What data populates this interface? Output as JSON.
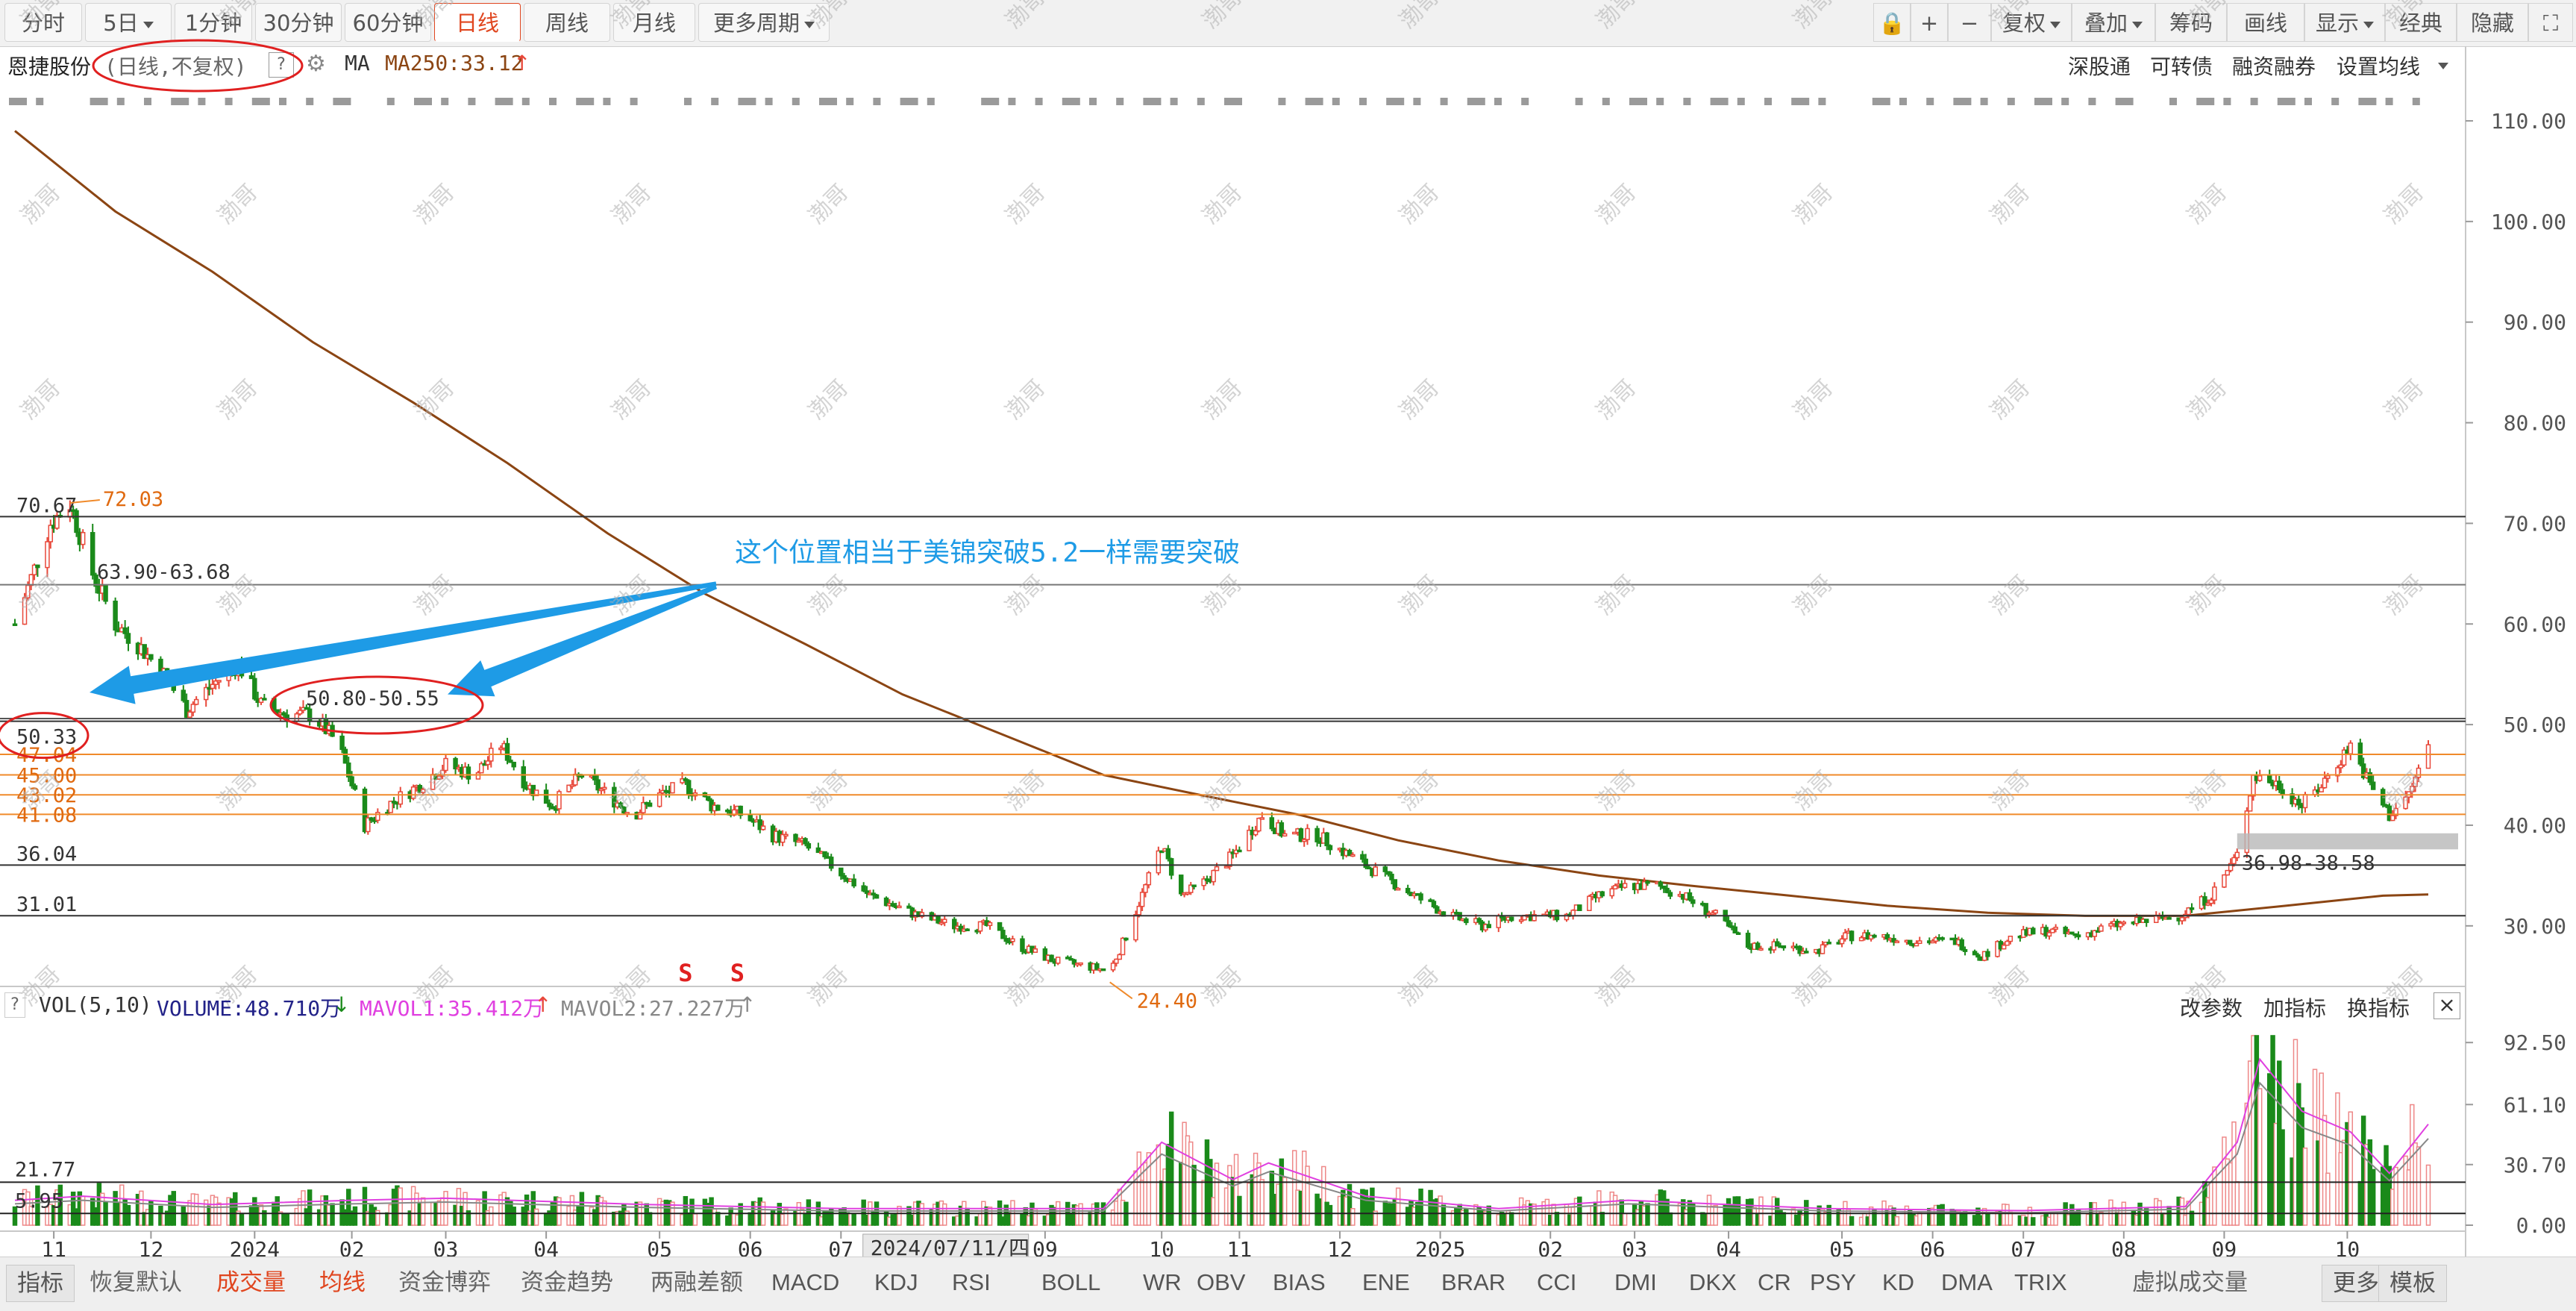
{
  "toolbar": {
    "tabs": [
      {
        "label": "分时",
        "caret": false
      },
      {
        "label": "5日",
        "caret": true
      },
      {
        "label": "1分钟",
        "caret": false
      },
      {
        "label": "30分钟",
        "caret": false
      },
      {
        "label": "60分钟",
        "caret": false
      },
      {
        "label": "日线",
        "caret": false,
        "active": true
      },
      {
        "label": "周线",
        "caret": false
      },
      {
        "label": "月线",
        "caret": false
      },
      {
        "label": "更多周期",
        "caret": true
      }
    ],
    "right": [
      {
        "label": "🔒",
        "caret": false
      },
      {
        "label": "+",
        "caret": false
      },
      {
        "label": "−",
        "caret": false
      },
      {
        "label": "复权",
        "caret": true
      },
      {
        "label": "叠加",
        "caret": true
      },
      {
        "label": "筹码",
        "caret": false
      },
      {
        "label": "画线",
        "caret": false
      },
      {
        "label": "显示",
        "caret": true
      },
      {
        "label": "经典",
        "caret": false
      },
      {
        "label": "隐藏",
        "caret": false
      },
      {
        "label": "⛶",
        "caret": false
      }
    ]
  },
  "info": {
    "stock_name": "恩捷股份",
    "mode": "(日线,不复权)",
    "help": "?",
    "ma_label": "MA",
    "ma_value": "MA250:33.12",
    "ma_arrow": "↑",
    "right_links": [
      "深股通",
      "可转债",
      "融资融券",
      "设置均线"
    ]
  },
  "volume_info": {
    "help": "?",
    "vol_label": "VOL(5,10)",
    "volume": "VOLUME:48.710万",
    "volume_arrow": "↓",
    "mavol1": "MAVOL1:35.412万",
    "mavol1_arrow": "↑",
    "mavol2": "MAVOL2:27.227万",
    "mavol2_arrow": "↑",
    "right": [
      "改参数",
      "加指标",
      "换指标",
      "×"
    ]
  },
  "bottom_tabs": [
    {
      "label": "指标",
      "style": "boxed"
    },
    {
      "label": "恢复默认",
      "style": "normal"
    },
    {
      "label": "成交量",
      "style": "red"
    },
    {
      "label": "均线",
      "style": "red"
    },
    {
      "label": "资金博弈",
      "style": "normal"
    },
    {
      "label": "资金趋势",
      "style": "normal"
    },
    {
      "label": "两融差额",
      "style": "normal"
    },
    {
      "label": "MACD",
      "style": "abc"
    },
    {
      "label": "KDJ",
      "style": "abc"
    },
    {
      "label": "RSI",
      "style": "abc"
    },
    {
      "label": "BOLL",
      "style": "abc"
    },
    {
      "label": "WR",
      "style": "abc"
    },
    {
      "label": "OBV",
      "style": "abc"
    },
    {
      "label": "BIAS",
      "style": "abc"
    },
    {
      "label": "ENE",
      "style": "abc"
    },
    {
      "label": "BRAR",
      "style": "abc"
    },
    {
      "label": "CCI",
      "style": "abc"
    },
    {
      "label": "DMI",
      "style": "abc"
    },
    {
      "label": "DKX",
      "style": "abc"
    },
    {
      "label": "CR",
      "style": "abc"
    },
    {
      "label": "PSY",
      "style": "abc"
    },
    {
      "label": "KD",
      "style": "abc"
    },
    {
      "label": "DMA",
      "style": "abc"
    },
    {
      "label": "TRIX",
      "style": "abc"
    },
    {
      "label": "虚拟成交量",
      "style": "normal"
    },
    {
      "label": "更多",
      "style": "boxed"
    },
    {
      "label": "模板",
      "style": "boxed"
    }
  ],
  "watermark": "渤哥",
  "colors": {
    "up": "#e8483a",
    "down": "#1a8a1a",
    "ma250": "#8b4513",
    "orange": "#f08a2a",
    "annotation": "#1e9be6",
    "circle": "#e02020",
    "mavol1": "#e040e0",
    "mavol2": "#888888"
  },
  "chart_data": {
    "type": "candlestick",
    "price_axis": {
      "ticks": [
        30,
        40,
        50,
        60,
        70,
        80,
        90,
        100,
        110
      ],
      "labels": [
        "30.00",
        "40.00",
        "50.00",
        "60.00",
        "70.00",
        "80.00",
        "90.00",
        "100.00",
        "110.00"
      ],
      "range": [
        24.5,
        112
      ],
      "side": "right"
    },
    "volume_axis": {
      "ticks": [
        0,
        30.7,
        61.1,
        92.5
      ],
      "labels": [
        "0.00",
        "30.70",
        "61.10",
        "92.50"
      ],
      "unit": "万",
      "range": [
        0,
        99
      ]
    },
    "x_ticks": [
      {
        "label": "11",
        "date": "2023-11-01"
      },
      {
        "label": "12",
        "date": "2023-12-01"
      },
      {
        "label": "2024",
        "date": "2024-01-02"
      },
      {
        "label": "02",
        "date": "2024-02-01"
      },
      {
        "label": "03",
        "date": "2024-03-01"
      },
      {
        "label": "04",
        "date": "2024-04-01"
      },
      {
        "label": "05",
        "date": "2024-05-06"
      },
      {
        "label": "06",
        "date": "2024-06-03"
      },
      {
        "label": "07",
        "date": "2024-07-01"
      },
      {
        "label": "09",
        "date": "2024-09-02"
      },
      {
        "label": "10",
        "date": "2024-10-08"
      },
      {
        "label": "11",
        "date": "2024-11-01"
      },
      {
        "label": "12",
        "date": "2024-12-02"
      },
      {
        "label": "2025",
        "date": "2025-01-02"
      },
      {
        "label": "02",
        "date": "2025-02-05"
      },
      {
        "label": "03",
        "date": "2025-03-03"
      },
      {
        "label": "04",
        "date": "2025-04-01"
      },
      {
        "label": "05",
        "date": "2025-05-06"
      },
      {
        "label": "06",
        "date": "2025-06-03"
      },
      {
        "label": "07",
        "date": "2025-07-01"
      },
      {
        "label": "08",
        "date": "2025-08-01"
      },
      {
        "label": "09",
        "date": "2025-09-01"
      },
      {
        "label": "10",
        "date": "2025-10-09"
      }
    ],
    "x_range": [
      "2023-10-20",
      "2025-11-03"
    ],
    "cursor_date_label": "2024/07/11/四",
    "close_path": [
      {
        "date": "2023-10-20",
        "close": 60
      },
      {
        "date": "2023-10-31",
        "close": 70
      },
      {
        "date": "2023-11-06",
        "close": 72
      },
      {
        "date": "2023-11-13",
        "close": 65
      },
      {
        "date": "2023-11-20",
        "close": 60
      },
      {
        "date": "2023-11-27",
        "close": 58
      },
      {
        "date": "2023-12-05",
        "close": 55
      },
      {
        "date": "2023-12-12",
        "close": 51.5
      },
      {
        "date": "2023-12-20",
        "close": 54
      },
      {
        "date": "2023-12-28",
        "close": 56
      },
      {
        "date": "2024-01-04",
        "close": 52
      },
      {
        "date": "2024-01-12",
        "close": 51
      },
      {
        "date": "2024-01-20",
        "close": 51
      },
      {
        "date": "2024-01-28",
        "close": 48
      },
      {
        "date": "2024-02-05",
        "close": 40
      },
      {
        "date": "2024-02-12",
        "close": 42
      },
      {
        "date": "2024-02-22",
        "close": 44
      },
      {
        "date": "2024-03-01",
        "close": 46
      },
      {
        "date": "2024-03-10",
        "close": 45
      },
      {
        "date": "2024-03-18",
        "close": 48
      },
      {
        "date": "2024-03-26",
        "close": 44
      },
      {
        "date": "2024-04-03",
        "close": 42
      },
      {
        "date": "2024-04-12",
        "close": 45
      },
      {
        "date": "2024-04-20",
        "close": 43
      },
      {
        "date": "2024-04-28",
        "close": 41
      },
      {
        "date": "2024-05-06",
        "close": 43
      },
      {
        "date": "2024-05-14",
        "close": 44
      },
      {
        "date": "2024-05-22",
        "close": 42
      },
      {
        "date": "2024-06-01",
        "close": 41
      },
      {
        "date": "2024-06-10",
        "close": 39
      },
      {
        "date": "2024-06-20",
        "close": 38
      },
      {
        "date": "2024-06-28",
        "close": 36
      },
      {
        "date": "2024-07-10",
        "close": 33
      },
      {
        "date": "2024-07-25",
        "close": 31
      },
      {
        "date": "2024-08-05",
        "close": 30
      },
      {
        "date": "2024-08-15",
        "close": 30
      },
      {
        "date": "2024-08-25",
        "close": 28
      },
      {
        "date": "2024-09-05",
        "close": 26.5
      },
      {
        "date": "2024-09-15",
        "close": 26
      },
      {
        "date": "2024-09-22",
        "close": 25.5
      },
      {
        "date": "2024-09-27",
        "close": 29
      },
      {
        "date": "2024-10-08",
        "close": 38
      },
      {
        "date": "2024-10-14",
        "close": 33
      },
      {
        "date": "2024-10-20",
        "close": 34
      },
      {
        "date": "2024-10-30",
        "close": 37
      },
      {
        "date": "2024-11-08",
        "close": 41
      },
      {
        "date": "2024-11-15",
        "close": 39
      },
      {
        "date": "2024-11-25",
        "close": 39
      },
      {
        "date": "2024-12-05",
        "close": 37
      },
      {
        "date": "2024-12-15",
        "close": 35
      },
      {
        "date": "2024-12-25",
        "close": 33
      },
      {
        "date": "2025-01-05",
        "close": 31
      },
      {
        "date": "2025-01-15",
        "close": 30
      },
      {
        "date": "2025-01-25",
        "close": 31
      },
      {
        "date": "2025-02-10",
        "close": 31
      },
      {
        "date": "2025-02-20",
        "close": 33
      },
      {
        "date": "2025-03-01",
        "close": 34
      },
      {
        "date": "2025-03-10",
        "close": 34
      },
      {
        "date": "2025-03-18",
        "close": 33
      },
      {
        "date": "2025-03-28",
        "close": 31
      },
      {
        "date": "2025-04-07",
        "close": 28
      },
      {
        "date": "2025-04-18",
        "close": 28
      },
      {
        "date": "2025-04-28",
        "close": 27.5
      },
      {
        "date": "2025-05-08",
        "close": 29
      },
      {
        "date": "2025-05-18",
        "close": 29
      },
      {
        "date": "2025-05-28",
        "close": 28.5
      },
      {
        "date": "2025-06-10",
        "close": 28.5
      },
      {
        "date": "2025-06-18",
        "close": 27
      },
      {
        "date": "2025-06-28",
        "close": 29
      },
      {
        "date": "2025-07-08",
        "close": 29.5
      },
      {
        "date": "2025-07-18",
        "close": 29
      },
      {
        "date": "2025-07-28",
        "close": 30
      },
      {
        "date": "2025-08-08",
        "close": 30.5
      },
      {
        "date": "2025-08-18",
        "close": 31
      },
      {
        "date": "2025-08-28",
        "close": 33
      },
      {
        "date": "2025-09-05",
        "close": 37
      },
      {
        "date": "2025-09-10",
        "close": 45
      },
      {
        "date": "2025-09-18",
        "close": 44
      },
      {
        "date": "2025-09-25",
        "close": 42
      },
      {
        "date": "2025-10-01",
        "close": 44
      },
      {
        "date": "2025-10-10",
        "close": 48
      },
      {
        "date": "2025-10-16",
        "close": 44
      },
      {
        "date": "2025-10-22",
        "close": 41
      },
      {
        "date": "2025-10-28",
        "close": 43
      },
      {
        "date": "2025-11-03",
        "close": 48
      }
    ],
    "ma250_path": [
      {
        "date": "2023-10-20",
        "value": 109
      },
      {
        "date": "2023-11-20",
        "value": 101
      },
      {
        "date": "2023-12-20",
        "value": 95
      },
      {
        "date": "2024-01-20",
        "value": 88
      },
      {
        "date": "2024-02-20",
        "value": 82
      },
      {
        "date": "2024-03-20",
        "value": 76
      },
      {
        "date": "2024-04-20",
        "value": 69
      },
      {
        "date": "2024-05-20",
        "value": 63
      },
      {
        "date": "2024-06-20",
        "value": 58
      },
      {
        "date": "2024-07-20",
        "value": 53
      },
      {
        "date": "2024-08-20",
        "value": 49
      },
      {
        "date": "2024-09-20",
        "value": 45
      },
      {
        "date": "2024-10-20",
        "value": 43
      },
      {
        "date": "2024-11-20",
        "value": 41
      },
      {
        "date": "2024-12-20",
        "value": 38.5
      },
      {
        "date": "2025-01-20",
        "value": 36.5
      },
      {
        "date": "2025-02-20",
        "value": 35
      },
      {
        "date": "2025-03-20",
        "value": 34
      },
      {
        "date": "2025-04-20",
        "value": 33
      },
      {
        "date": "2025-05-20",
        "value": 32
      },
      {
        "date": "2025-06-20",
        "value": 31.3
      },
      {
        "date": "2025-07-20",
        "value": 31
      },
      {
        "date": "2025-08-20",
        "value": 31
      },
      {
        "date": "2025-09-20",
        "value": 32
      },
      {
        "date": "2025-10-20",
        "value": 33
      },
      {
        "date": "2025-11-03",
        "value": 33.12
      }
    ],
    "volume_path": [
      {
        "date": "2023-10-20",
        "value": 12
      },
      {
        "date": "2023-11-10",
        "value": 14
      },
      {
        "date": "2023-12-20",
        "value": 10
      },
      {
        "date": "2024-02-01",
        "value": 12
      },
      {
        "date": "2024-03-01",
        "value": 13
      },
      {
        "date": "2024-05-01",
        "value": 10
      },
      {
        "date": "2024-07-01",
        "value": 8
      },
      {
        "date": "2024-09-20",
        "value": 8
      },
      {
        "date": "2024-10-08",
        "value": 40
      },
      {
        "date": "2024-10-30",
        "value": 22
      },
      {
        "date": "2024-11-10",
        "value": 30
      },
      {
        "date": "2024-12-10",
        "value": 14
      },
      {
        "date": "2025-01-20",
        "value": 8
      },
      {
        "date": "2025-03-01",
        "value": 12
      },
      {
        "date": "2025-05-01",
        "value": 8
      },
      {
        "date": "2025-07-01",
        "value": 7
      },
      {
        "date": "2025-08-20",
        "value": 9
      },
      {
        "date": "2025-09-05",
        "value": 40
      },
      {
        "date": "2025-09-12",
        "value": 80
      },
      {
        "date": "2025-09-25",
        "value": 55
      },
      {
        "date": "2025-10-10",
        "value": 45
      },
      {
        "date": "2025-10-22",
        "value": 25
      },
      {
        "date": "2025-11-03",
        "value": 48.71
      }
    ],
    "high_label": "72.03",
    "low_label": "24.40",
    "s_markers": [
      {
        "label": "S",
        "date": "2024-05-14"
      },
      {
        "label": "S",
        "date": "2024-05-30"
      }
    ],
    "horizontal_lines": [
      {
        "price": 70.67,
        "label": "70.67",
        "color": "#333333",
        "label_side": "left"
      },
      {
        "price": 63.9,
        "label": "63.90-63.68",
        "color": "#777777",
        "label_side": "inner"
      },
      {
        "price": 50.6,
        "label": "50.80-50.55",
        "color": "#555555",
        "label_side": "inner"
      },
      {
        "price": 50.33,
        "label": "50.33",
        "color": "#333333",
        "label_side": "left"
      },
      {
        "price": 47.04,
        "label": "47.04",
        "color": "#f08a2a",
        "label_side": "left"
      },
      {
        "price": 45.0,
        "label": "45.00",
        "color": "#f08a2a",
        "label_side": "left"
      },
      {
        "price": 43.02,
        "label": "43.02",
        "color": "#f08a2a",
        "label_side": "left"
      },
      {
        "price": 41.08,
        "label": "41.08",
        "color": "#f08a2a",
        "label_side": "left"
      },
      {
        "price": 36.04,
        "label": "36.04",
        "color": "#333333",
        "label_side": "left"
      },
      {
        "price": 31.01,
        "label": "31.01",
        "color": "#333333",
        "label_side": "left"
      }
    ],
    "volume_lines": [
      {
        "value": 21.77,
        "label": "21.77"
      },
      {
        "value": 5.95,
        "label": "5.95"
      }
    ],
    "range_note": "36.98-38.58",
    "annotation": "这个位置相当于美锦突破5.2一样需要突破"
  }
}
